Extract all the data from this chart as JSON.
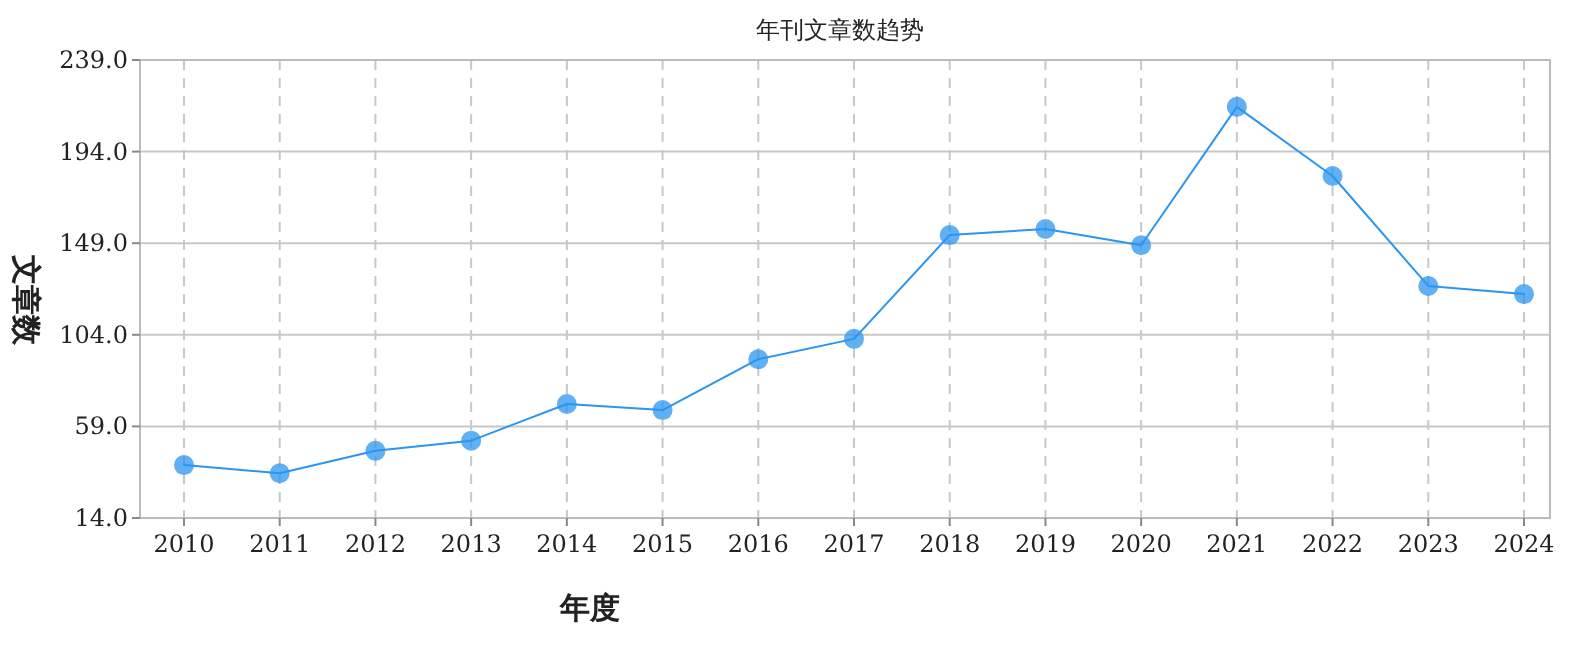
{
  "chart_data": {
    "type": "line",
    "title": "年刊文章数趋势",
    "xlabel": "年度",
    "ylabel": "文章数",
    "categories": [
      "2010",
      "2011",
      "2012",
      "2013",
      "2014",
      "2015",
      "2016",
      "2017",
      "2018",
      "2019",
      "2020",
      "2021",
      "2022",
      "2023",
      "2024"
    ],
    "series": [
      {
        "color": "#2b95ef",
        "values": [
          40,
          36,
          47,
          52,
          70,
          67,
          92,
          102,
          153,
          156,
          148,
          216,
          182,
          128,
          124
        ]
      }
    ],
    "ylim": [
      14,
      239
    ],
    "yticks": [
      {
        "value": 14,
        "label": "14.0"
      },
      {
        "value": 59,
        "label": "59.0"
      },
      {
        "value": 104,
        "label": "104.0"
      },
      {
        "value": 149,
        "label": "149.0"
      },
      {
        "value": 194,
        "label": "194.0"
      },
      {
        "value": 239,
        "label": "239.0"
      }
    ],
    "grid": true,
    "marker": "circle",
    "line_style": "solid"
  }
}
